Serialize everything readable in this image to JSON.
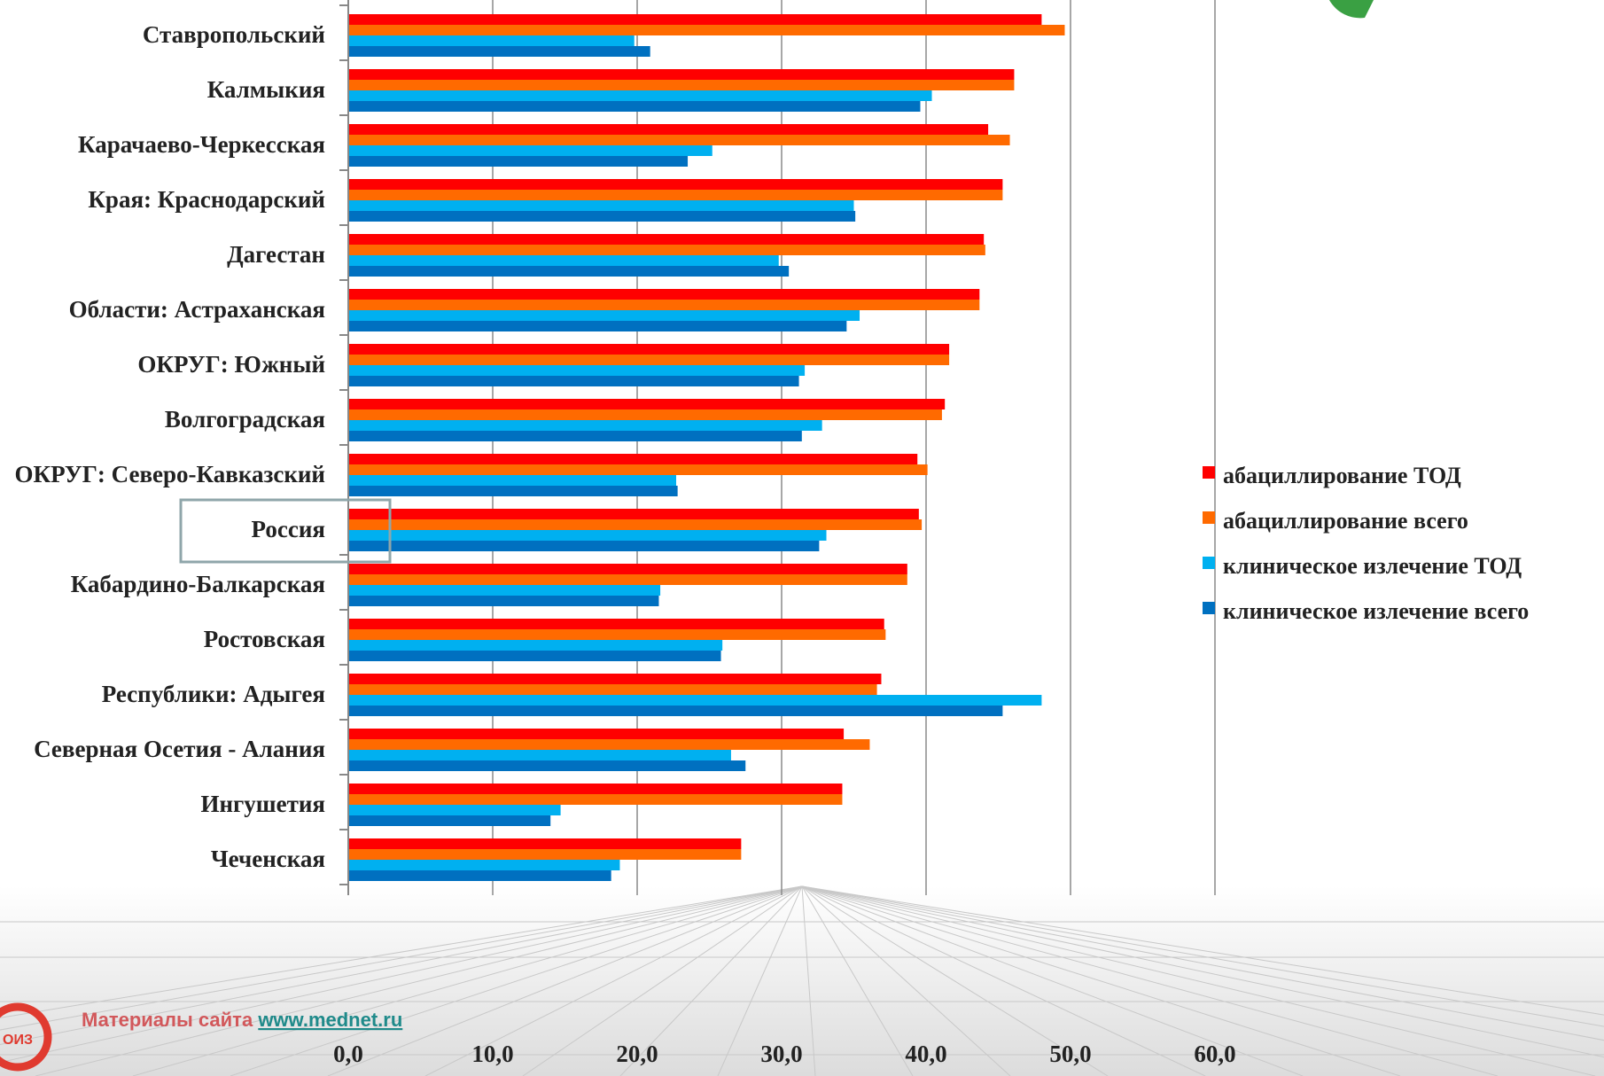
{
  "chart_data": {
    "type": "bar",
    "orientation": "horizontal",
    "categories": [
      "Ставропольский",
      "Калмыкия",
      "Карачаево-Черкесская",
      "Края: Краснодарский",
      "Дагестан",
      "Области: Астраханская",
      "ОКРУГ: Южный",
      "Волгоградская",
      "ОКРУГ: Северо-Кавказский",
      "Россия",
      "Кабардино-Балкарская",
      "Ростовская",
      "Республики:  Адыгея",
      "Северная Осетия - Алания",
      "Ингушетия",
      "Чеченская"
    ],
    "highlighted_category": "Россия",
    "series": [
      {
        "name": "абациллирование ТОД",
        "color": "#ff0000",
        "values": [
          48.0,
          46.1,
          44.3,
          45.3,
          44.0,
          43.7,
          41.6,
          41.3,
          39.4,
          39.5,
          38.7,
          37.1,
          36.9,
          34.3,
          34.2,
          27.2
        ]
      },
      {
        "name": "абациллирование всего",
        "color": "#ff6a00",
        "values": [
          49.6,
          46.1,
          45.8,
          45.3,
          44.1,
          43.7,
          41.6,
          41.1,
          40.1,
          39.7,
          38.7,
          37.2,
          36.6,
          36.1,
          34.2,
          27.2
        ]
      },
      {
        "name": "клиническое излечение ТОД",
        "color": "#00b0f0",
        "values": [
          19.8,
          40.4,
          25.2,
          35.0,
          29.8,
          35.4,
          31.6,
          32.8,
          22.7,
          33.1,
          21.6,
          25.9,
          48.0,
          26.5,
          14.7,
          18.8
        ]
      },
      {
        "name": "клиническое излечение всего",
        "color": "#0070c0",
        "values": [
          20.9,
          39.6,
          23.5,
          35.1,
          30.5,
          34.5,
          31.2,
          31.4,
          22.8,
          32.6,
          21.5,
          25.8,
          45.3,
          27.5,
          14.0,
          18.2
        ]
      }
    ],
    "x_ticks": [
      "0,0",
      "10,0",
      "20,0",
      "30,0",
      "40,0",
      "50,0",
      "60,0"
    ],
    "xlim": [
      0,
      60
    ],
    "grid": "vertical",
    "legend_position": "right"
  },
  "footer": {
    "text": "Материалы сайта ",
    "link": "www.mednet.ru"
  },
  "logo": {
    "text": "ОИЗ",
    "color": "#e03a2f"
  }
}
